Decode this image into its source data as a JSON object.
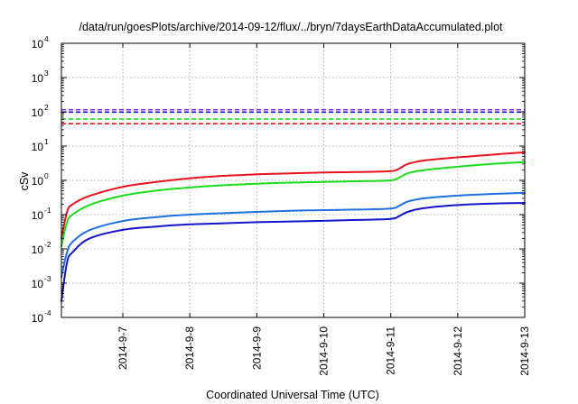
{
  "chart_data": {
    "type": "line",
    "title": "/data/run/goesPlots/archive/2014-09-12/flux/../bryn/7daysEarthDataAccumulated.plot",
    "xlabel": "Coordinated Universal Time (UTC)",
    "ylabel": "cSv",
    "x_scale": "time",
    "y_scale": "log",
    "xlim": [
      "2014-09-06T02:00",
      "2014-09-13T00:00"
    ],
    "ylim": [
      0.0001,
      10000
    ],
    "x_ticks": [
      "2014-9-7",
      "2014-9-8",
      "2014-9-9",
      "2014-9-10",
      "2014-9-11",
      "2014-9-12",
      "2014-9-13"
    ],
    "y_ticks": [
      {
        "base": "10",
        "exp": "-4",
        "value": 0.0001
      },
      {
        "base": "10",
        "exp": "-3",
        "value": 0.001
      },
      {
        "base": "10",
        "exp": "-2",
        "value": 0.01
      },
      {
        "base": "10",
        "exp": "-1",
        "value": 0.1
      },
      {
        "base": "10",
        "exp": "0",
        "value": 1
      },
      {
        "base": "10",
        "exp": "1",
        "value": 10
      },
      {
        "base": "10",
        "exp": "2",
        "value": 100
      },
      {
        "base": "10",
        "exp": "3",
        "value": 1000
      },
      {
        "base": "10",
        "exp": "4",
        "value": 10000
      }
    ],
    "grid": true,
    "series": [
      {
        "color": "#e8141b",
        "dash": false,
        "points": [
          [
            "2014-09-06T02:00",
            0.02
          ],
          [
            "2014-09-06T04:00",
            0.12
          ],
          [
            "2014-09-06T06:00",
            0.2
          ],
          [
            "2014-09-06T12:00",
            0.35
          ],
          [
            "2014-09-07T00:00",
            0.65
          ],
          [
            "2014-09-07T12:00",
            0.9
          ],
          [
            "2014-09-08T00:00",
            1.15
          ],
          [
            "2014-09-08T12:00",
            1.35
          ],
          [
            "2014-09-09T00:00",
            1.5
          ],
          [
            "2014-09-09T12:00",
            1.6
          ],
          [
            "2014-09-10T00:00",
            1.7
          ],
          [
            "2014-09-10T12:00",
            1.75
          ],
          [
            "2014-09-11T00:00",
            1.85
          ],
          [
            "2014-09-11T03:00",
            2.2
          ],
          [
            "2014-09-11T06:00",
            3.0
          ],
          [
            "2014-09-11T12:00",
            3.8
          ],
          [
            "2014-09-12T00:00",
            4.7
          ],
          [
            "2014-09-12T12:00",
            5.6
          ],
          [
            "2014-09-13T00:00",
            6.6
          ]
        ]
      },
      {
        "color": "#1cdc1c",
        "dash": false,
        "points": [
          [
            "2014-09-06T02:00",
            0.012
          ],
          [
            "2014-09-06T04:00",
            0.06
          ],
          [
            "2014-09-06T06:00",
            0.1
          ],
          [
            "2014-09-06T12:00",
            0.19
          ],
          [
            "2014-09-07T00:00",
            0.36
          ],
          [
            "2014-09-07T12:00",
            0.5
          ],
          [
            "2014-09-08T00:00",
            0.62
          ],
          [
            "2014-09-08T12:00",
            0.72
          ],
          [
            "2014-09-09T00:00",
            0.8
          ],
          [
            "2014-09-09T12:00",
            0.86
          ],
          [
            "2014-09-10T00:00",
            0.9
          ],
          [
            "2014-09-10T12:00",
            0.94
          ],
          [
            "2014-09-11T00:00",
            1.0
          ],
          [
            "2014-09-11T03:00",
            1.2
          ],
          [
            "2014-09-11T06:00",
            1.6
          ],
          [
            "2014-09-11T12:00",
            2.0
          ],
          [
            "2014-09-12T00:00",
            2.5
          ],
          [
            "2014-09-12T12:00",
            3.0
          ],
          [
            "2014-09-13T00:00",
            3.4
          ]
        ]
      },
      {
        "color": "#1f6fe0",
        "dash": false,
        "points": [
          [
            "2014-09-06T02:00",
            0.0015
          ],
          [
            "2014-09-06T04:00",
            0.008
          ],
          [
            "2014-09-06T06:00",
            0.016
          ],
          [
            "2014-09-06T12:00",
            0.035
          ],
          [
            "2014-09-07T00:00",
            0.065
          ],
          [
            "2014-09-07T12:00",
            0.085
          ],
          [
            "2014-09-08T00:00",
            0.1
          ],
          [
            "2014-09-08T12:00",
            0.11
          ],
          [
            "2014-09-09T00:00",
            0.12
          ],
          [
            "2014-09-09T12:00",
            0.13
          ],
          [
            "2014-09-10T00:00",
            0.135
          ],
          [
            "2014-09-10T12:00",
            0.14
          ],
          [
            "2014-09-11T00:00",
            0.15
          ],
          [
            "2014-09-11T03:00",
            0.18
          ],
          [
            "2014-09-11T06:00",
            0.24
          ],
          [
            "2014-09-11T12:00",
            0.3
          ],
          [
            "2014-09-12T00:00",
            0.36
          ],
          [
            "2014-09-12T12:00",
            0.4
          ],
          [
            "2014-09-13T00:00",
            0.43
          ]
        ]
      },
      {
        "color": "#1414cc",
        "dash": false,
        "points": [
          [
            "2014-09-06T02:00",
            0.0003
          ],
          [
            "2014-09-06T04:00",
            0.004
          ],
          [
            "2014-09-06T06:00",
            0.008
          ],
          [
            "2014-09-06T12:00",
            0.02
          ],
          [
            "2014-09-07T00:00",
            0.036
          ],
          [
            "2014-09-07T12:00",
            0.045
          ],
          [
            "2014-09-08T00:00",
            0.052
          ],
          [
            "2014-09-08T12:00",
            0.056
          ],
          [
            "2014-09-09T00:00",
            0.06
          ],
          [
            "2014-09-09T12:00",
            0.063
          ],
          [
            "2014-09-10T00:00",
            0.066
          ],
          [
            "2014-09-10T12:00",
            0.07
          ],
          [
            "2014-09-11T00:00",
            0.075
          ],
          [
            "2014-09-11T03:00",
            0.09
          ],
          [
            "2014-09-11T06:00",
            0.12
          ],
          [
            "2014-09-11T12:00",
            0.155
          ],
          [
            "2014-09-12T00:00",
            0.19
          ],
          [
            "2014-09-12T12:00",
            0.21
          ],
          [
            "2014-09-13T00:00",
            0.22
          ]
        ]
      }
    ],
    "thresholds": [
      {
        "color": "#8a2be2",
        "value": 115
      },
      {
        "color": "#1414cc",
        "value": 98
      },
      {
        "color": "#1cdc1c",
        "value": 62
      },
      {
        "color": "#e8141b",
        "value": 45
      }
    ]
  }
}
